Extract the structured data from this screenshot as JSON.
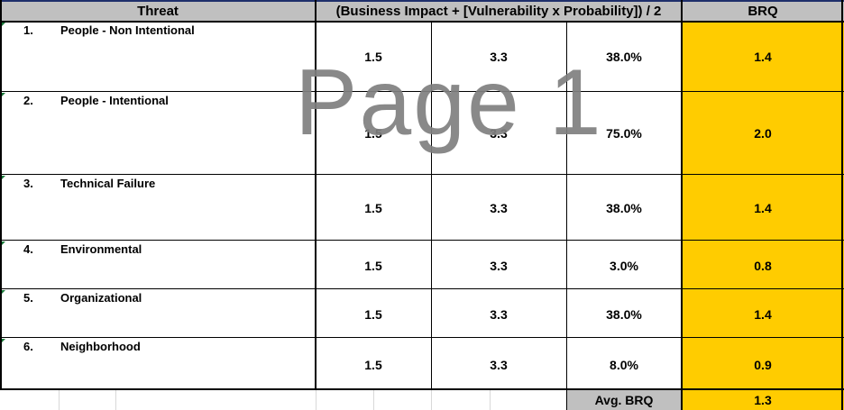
{
  "header": {
    "threat": "Threat",
    "formula": "(Business Impact + [Vulnerability x Probability]) / 2",
    "brq": "BRQ"
  },
  "rows": [
    {
      "index": "1.",
      "name": "People - Non Intentional",
      "business_impact": "1.5",
      "vulnerability": "3.3",
      "probability": "38.0%",
      "brq": "1.4"
    },
    {
      "index": "2.",
      "name": "People - Intentional",
      "business_impact": "1.5",
      "vulnerability": "3.3",
      "probability": "75.0%",
      "brq": "2.0"
    },
    {
      "index": "3.",
      "name": "Technical Failure",
      "business_impact": "1.5",
      "vulnerability": "3.3",
      "probability": "38.0%",
      "brq": "1.4"
    },
    {
      "index": "4.",
      "name": "Environmental",
      "business_impact": "1.5",
      "vulnerability": "3.3",
      "probability": "3.0%",
      "brq": "0.8"
    },
    {
      "index": "5.",
      "name": "Organizational",
      "business_impact": "1.5",
      "vulnerability": "3.3",
      "probability": "38.0%",
      "brq": "1.4"
    },
    {
      "index": "6.",
      "name": "Neighborhood",
      "business_impact": "1.5",
      "vulnerability": "3.3",
      "probability": "8.0%",
      "brq": "0.9"
    }
  ],
  "footer": {
    "avg_label": "Avg. BRQ",
    "avg_value": "1.3"
  },
  "watermark": "Page 1",
  "colors": {
    "header_bg": "#c0c0c0",
    "brq_bg": "#ffcc00",
    "watermark": "#7f7f7f"
  }
}
